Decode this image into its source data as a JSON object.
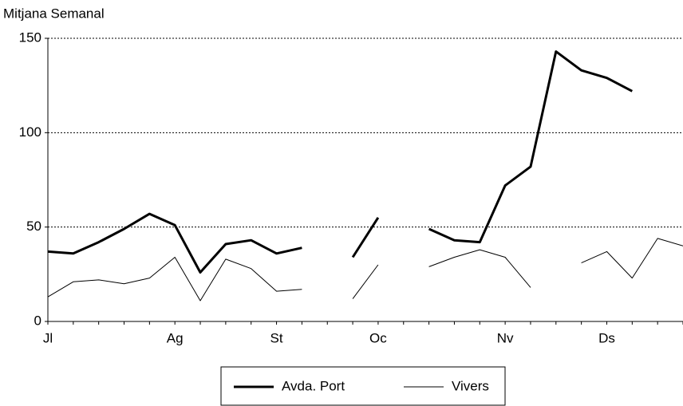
{
  "chart_data": {
    "type": "line",
    "y_label": "Mitjana Semanal",
    "categories": [
      "Jl",
      null,
      null,
      null,
      null,
      "Ag",
      null,
      null,
      null,
      "St",
      null,
      null,
      null,
      "Oc",
      null,
      null,
      null,
      null,
      "Nv",
      null,
      null,
      null,
      "Ds",
      null,
      null,
      null
    ],
    "series": [
      {
        "name": "Avda. Port",
        "color": "#000000",
        "width": 3,
        "values": [
          37,
          36,
          42,
          49,
          57,
          51,
          26,
          41,
          43,
          36,
          39,
          null,
          34,
          55,
          null,
          49,
          43,
          42,
          72,
          82,
          143,
          133,
          129,
          122,
          null,
          null
        ]
      },
      {
        "name": "Vivers",
        "color": "#000000",
        "width": 1,
        "values": [
          13,
          21,
          22,
          20,
          23,
          34,
          11,
          33,
          28,
          16,
          17,
          null,
          12,
          30,
          null,
          29,
          34,
          38,
          34,
          18,
          null,
          31,
          37,
          23,
          44,
          40
        ]
      }
    ],
    "ylim": [
      0,
      150
    ],
    "yticks": [
      0,
      50,
      100,
      150
    ],
    "grid": true
  }
}
